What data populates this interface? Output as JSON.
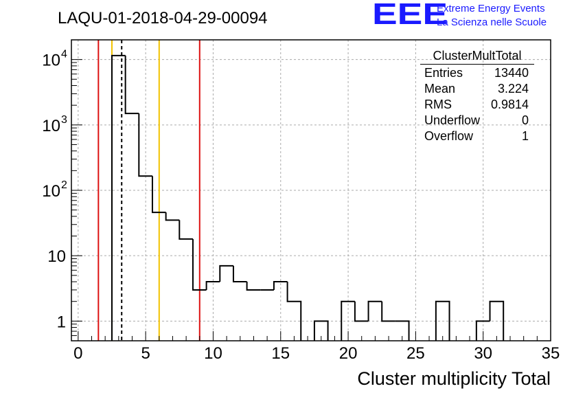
{
  "header": {
    "title": "LAQU-01-2018-04-29-00094"
  },
  "logo": {
    "mark": "EEE",
    "line1": "Extreme Energy Events",
    "line2": "La Scienza nelle Scuole"
  },
  "stats_box": {
    "title": "ClusterMultTotal",
    "rows": [
      {
        "label": "Entries",
        "value": "13440"
      },
      {
        "label": "Mean",
        "value": "3.224"
      },
      {
        "label": "RMS",
        "value": "0.9814"
      },
      {
        "label": "Underflow",
        "value": "0"
      },
      {
        "label": "Overflow",
        "value": "1"
      }
    ]
  },
  "colors": {
    "histogram": "#000000",
    "red_line": "#dd1111",
    "yellow_line": "#f2c200",
    "mean_line": "#000000",
    "grid": "#aaaaaa",
    "logo": "#1a1aff"
  },
  "chart_data": {
    "type": "histogram",
    "title": "LAQU-01-2018-04-29-00094",
    "xlabel": "Cluster multiplicity Total",
    "ylabel": "",
    "y_scale": "log",
    "xlim": [
      -0.5,
      35
    ],
    "ylim": [
      0.5,
      20000
    ],
    "grid": true,
    "bin_width": 1,
    "bin_centers": [
      0,
      1,
      2,
      3,
      4,
      5,
      6,
      7,
      8,
      9,
      10,
      11,
      12,
      13,
      14,
      15,
      16,
      17,
      18,
      19,
      20,
      21,
      22,
      23,
      24,
      25,
      26,
      27,
      28,
      29,
      30,
      31,
      32,
      33,
      34
    ],
    "values": [
      0,
      0,
      0,
      11500,
      1500,
      165,
      46,
      35,
      18,
      3,
      4,
      7,
      4,
      3,
      3,
      4,
      2,
      0,
      1,
      0,
      2,
      1,
      2,
      1,
      1,
      0,
      0,
      2,
      0,
      0,
      1,
      2,
      0,
      0,
      0
    ],
    "x_ticks": [
      {
        "value": 0,
        "label": "0"
      },
      {
        "value": 5,
        "label": "5"
      },
      {
        "value": 10,
        "label": "10"
      },
      {
        "value": 15,
        "label": "15"
      },
      {
        "value": 20,
        "label": "20"
      },
      {
        "value": 25,
        "label": "25"
      },
      {
        "value": 30,
        "label": "30"
      },
      {
        "value": 35,
        "label": "35"
      }
    ],
    "y_ticks": [
      {
        "value": 1,
        "base": "1",
        "exp": ""
      },
      {
        "value": 10,
        "base": "10",
        "exp": ""
      },
      {
        "value": 100,
        "base": "10",
        "exp": "2"
      },
      {
        "value": 1000,
        "base": "10",
        "exp": "3"
      },
      {
        "value": 10000,
        "base": "10",
        "exp": "4"
      }
    ],
    "vertical_lines": [
      {
        "x": 1.5,
        "color": "red",
        "style": "solid"
      },
      {
        "x": 2.5,
        "color": "yellow",
        "style": "solid"
      },
      {
        "x": 3.224,
        "color": "black",
        "style": "dashed"
      },
      {
        "x": 6.0,
        "color": "yellow",
        "style": "solid"
      },
      {
        "x": 9.0,
        "color": "red",
        "style": "solid"
      }
    ]
  }
}
